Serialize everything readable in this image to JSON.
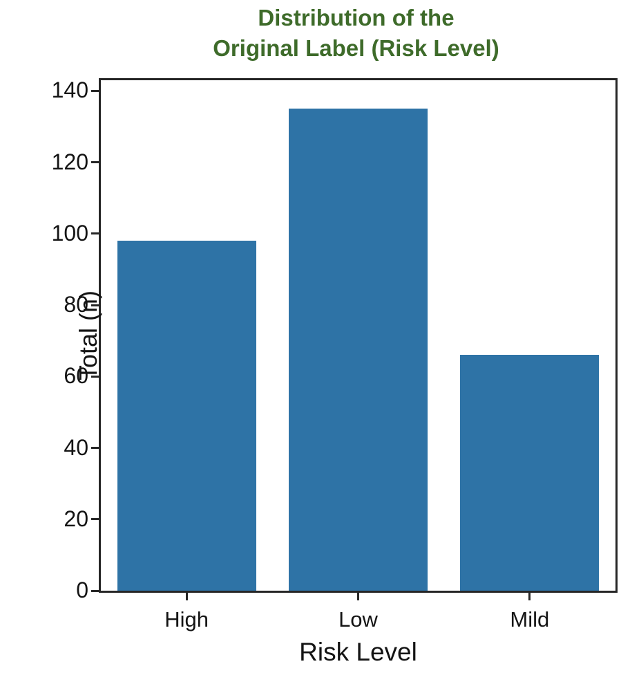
{
  "title": {
    "line1": "Distribution of the",
    "line2": "Original Label (Risk Level)"
  },
  "chart_data": {
    "type": "bar",
    "title": "Distribution of the Original Label (Risk Level)",
    "categories": [
      "High",
      "Low",
      "Mild"
    ],
    "values": [
      98,
      135,
      66
    ],
    "xlabel": "Risk Level",
    "ylabel": "Total (n)",
    "yticks": [
      0,
      20,
      40,
      60,
      80,
      100,
      120,
      140
    ],
    "ylim": [
      0,
      143
    ],
    "grid": false,
    "legend": null,
    "bar_color": "#2e73a6",
    "title_color": "#3e6b2a",
    "axis_color": "#262626",
    "text_color": "#141414"
  }
}
